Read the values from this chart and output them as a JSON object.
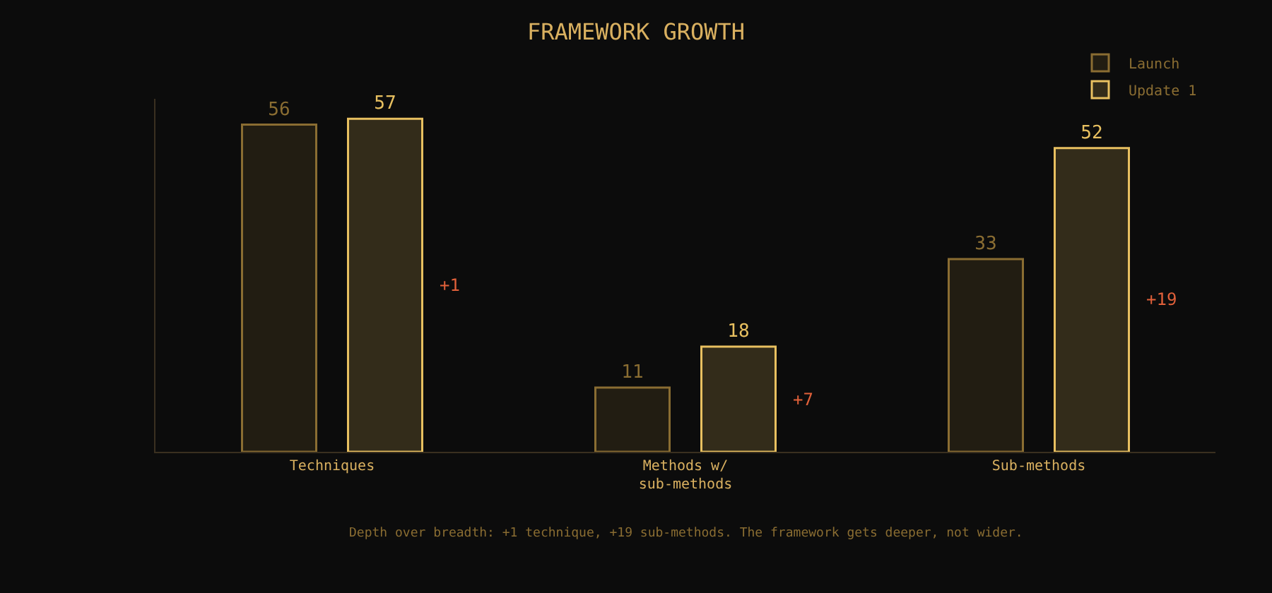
{
  "chart_data": {
    "type": "bar",
    "title": "FRAMEWORK GROWTH",
    "categories": [
      "Techniques",
      "Methods w/ sub-methods",
      "Sub-methods"
    ],
    "series": [
      {
        "name": "Launch",
        "color": "#8a6d32",
        "values": [
          56,
          11,
          33
        ]
      },
      {
        "name": "Update 1",
        "color": "#e8c060",
        "values": [
          57,
          18,
          52
        ]
      }
    ],
    "data_labels": true,
    "legend": "top right",
    "grid": false,
    "annotations": [
      "+1",
      "+7",
      "+19",
      "Depth over breadth: +1 technique, +19 sub-methods. The framework gets deeper, not wider."
    ]
  }
}
